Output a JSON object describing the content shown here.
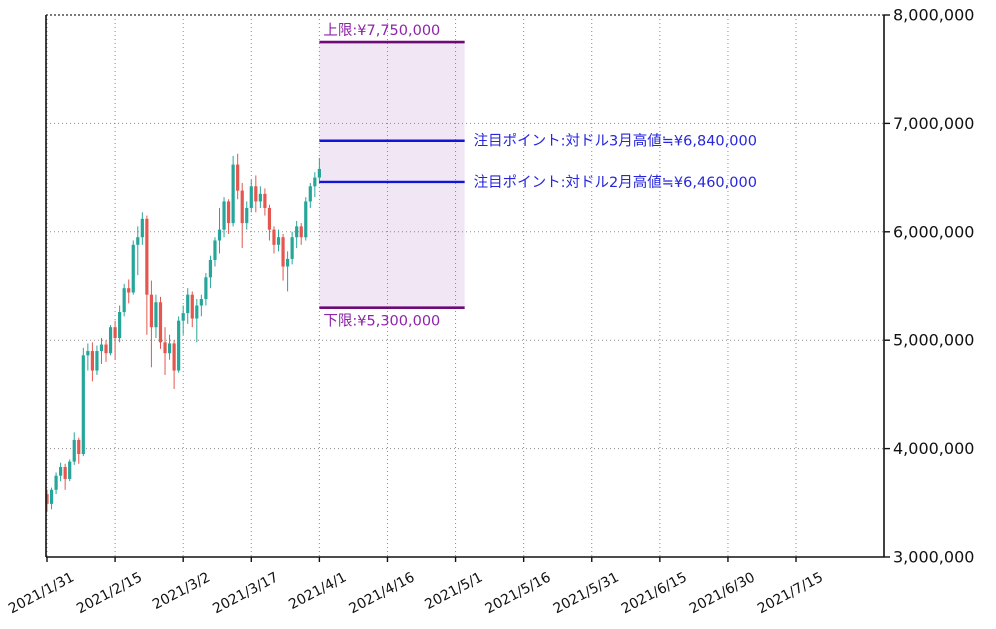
{
  "chart_data": {
    "type": "candlestick",
    "title": "",
    "currency": "JPY",
    "y_axis": {
      "min": 3000000,
      "max": 8000000,
      "tick_step": 1000000,
      "tick_labels": [
        "8,000,000",
        "7,000,000",
        "6,000,000",
        "5,000,000",
        "4,000,000",
        "3,000,000"
      ],
      "side": "right"
    },
    "x_axis": {
      "tick_labels": [
        "2021/1/31",
        "2021/2/15",
        "2021/3/2",
        "2021/3/17",
        "2021/4/1",
        "2021/4/16",
        "2021/5/1",
        "2021/5/16",
        "2021/5/31",
        "2021/6/15",
        "2021/6/30",
        "2021/7/15"
      ],
      "tick_interval_days": 15,
      "label_rotation_deg": 28
    },
    "grid": "dotted",
    "candles": {
      "start_date": "2021/1/31",
      "values_unit": "million_jpy",
      "ohlc": [
        [
          3.58,
          3.62,
          3.42,
          3.49
        ],
        [
          3.49,
          3.64,
          3.44,
          3.62
        ],
        [
          3.62,
          3.78,
          3.58,
          3.75
        ],
        [
          3.75,
          3.87,
          3.7,
          3.83
        ],
        [
          3.83,
          3.86,
          3.62,
          3.72
        ],
        [
          3.72,
          3.9,
          3.7,
          3.88
        ],
        [
          3.88,
          4.15,
          3.85,
          4.08
        ],
        [
          4.08,
          4.1,
          3.86,
          3.95
        ],
        [
          3.95,
          4.93,
          3.93,
          4.86
        ],
        [
          4.86,
          4.97,
          4.72,
          4.9
        ],
        [
          4.9,
          4.98,
          4.62,
          4.72
        ],
        [
          4.72,
          4.95,
          4.68,
          4.9
        ],
        [
          4.9,
          5.02,
          4.78,
          4.96
        ],
        [
          4.96,
          5.0,
          4.8,
          4.88
        ],
        [
          4.88,
          5.14,
          4.86,
          5.12
        ],
        [
          5.12,
          5.18,
          4.82,
          5.02
        ],
        [
          5.02,
          5.32,
          4.98,
          5.26
        ],
        [
          5.26,
          5.52,
          5.22,
          5.48
        ],
        [
          5.48,
          5.56,
          5.34,
          5.44
        ],
        [
          5.44,
          5.92,
          5.42,
          5.88
        ],
        [
          5.88,
          6.05,
          5.6,
          5.95
        ],
        [
          5.95,
          6.18,
          5.88,
          6.12
        ],
        [
          6.12,
          6.15,
          5.05,
          5.42
        ],
        [
          5.42,
          5.55,
          4.75,
          5.12
        ],
        [
          5.12,
          5.42,
          5.02,
          5.35
        ],
        [
          5.35,
          5.4,
          4.92,
          4.98
        ],
        [
          4.98,
          5.12,
          4.68,
          4.88
        ],
        [
          4.88,
          5.05,
          4.82,
          4.97
        ],
        [
          4.97,
          5.0,
          4.55,
          4.72
        ],
        [
          4.72,
          5.22,
          4.7,
          5.18
        ],
        [
          5.18,
          5.32,
          5.05,
          5.25
        ],
        [
          5.25,
          5.48,
          5.15,
          5.42
        ],
        [
          5.42,
          5.45,
          5.12,
          5.2
        ],
        [
          5.2,
          5.38,
          4.98,
          5.32
        ],
        [
          5.32,
          5.42,
          5.22,
          5.38
        ],
        [
          5.38,
          5.62,
          5.32,
          5.58
        ],
        [
          5.58,
          5.78,
          5.48,
          5.74
        ],
        [
          5.74,
          5.95,
          5.68,
          5.92
        ],
        [
          5.92,
          6.22,
          5.8,
          6.02
        ],
        [
          6.02,
          6.32,
          5.95,
          6.28
        ],
        [
          6.28,
          6.3,
          5.98,
          6.08
        ],
        [
          6.08,
          6.7,
          6.05,
          6.62
        ],
        [
          6.62,
          6.72,
          6.3,
          6.38
        ],
        [
          6.38,
          6.45,
          5.85,
          6.08
        ],
        [
          6.08,
          6.28,
          6.02,
          6.22
        ],
        [
          6.22,
          6.48,
          6.18,
          6.42
        ],
        [
          6.42,
          6.52,
          6.18,
          6.28
        ],
        [
          6.28,
          6.42,
          6.22,
          6.35
        ],
        [
          6.35,
          6.4,
          6.15,
          6.22
        ],
        [
          6.22,
          6.25,
          5.92,
          6.02
        ],
        [
          6.02,
          6.05,
          5.8,
          5.88
        ],
        [
          5.88,
          6.02,
          5.82,
          5.95
        ],
        [
          5.95,
          5.98,
          5.55,
          5.68
        ],
        [
          5.68,
          5.82,
          5.45,
          5.75
        ],
        [
          5.75,
          6.0,
          5.7,
          5.95
        ],
        [
          5.95,
          6.1,
          5.85,
          6.05
        ],
        [
          6.05,
          6.08,
          5.88,
          5.95
        ],
        [
          5.95,
          6.32,
          5.92,
          6.28
        ],
        [
          6.28,
          6.45,
          6.22,
          6.42
        ],
        [
          6.42,
          6.55,
          6.32,
          6.5
        ],
        [
          6.5,
          6.68,
          6.45,
          6.58
        ]
      ]
    },
    "band": {
      "from": "2021/4/1",
      "to": "2021/5/3",
      "upper_value": 7750000,
      "lower_value": 5300000,
      "upper_label": "上限:¥7,750,000",
      "lower_label": "下限:¥5,300,000"
    },
    "focus_lines": [
      {
        "value": 6840000,
        "label": "注目ポイント:対ドル3月高値≒¥6,840,000"
      },
      {
        "value": 6460000,
        "label": "注目ポイント:対ドル2月高値≒¥6,460,000"
      }
    ],
    "colors": {
      "up_candle": "#26a69a",
      "down_candle": "#e4564e",
      "band_fill": "#8c3ca4",
      "band_fill_opacity": "0.12",
      "bound_line": "#6e0a78",
      "bound_text": "#8e24aa",
      "focus_line": "#1414d8",
      "focus_text": "#2626dd",
      "grid": "#8a8a8a",
      "top_grid": "#2a2a2a",
      "axis": "#111111",
      "tick_text": "#111111",
      "background": "#ffffff"
    }
  }
}
